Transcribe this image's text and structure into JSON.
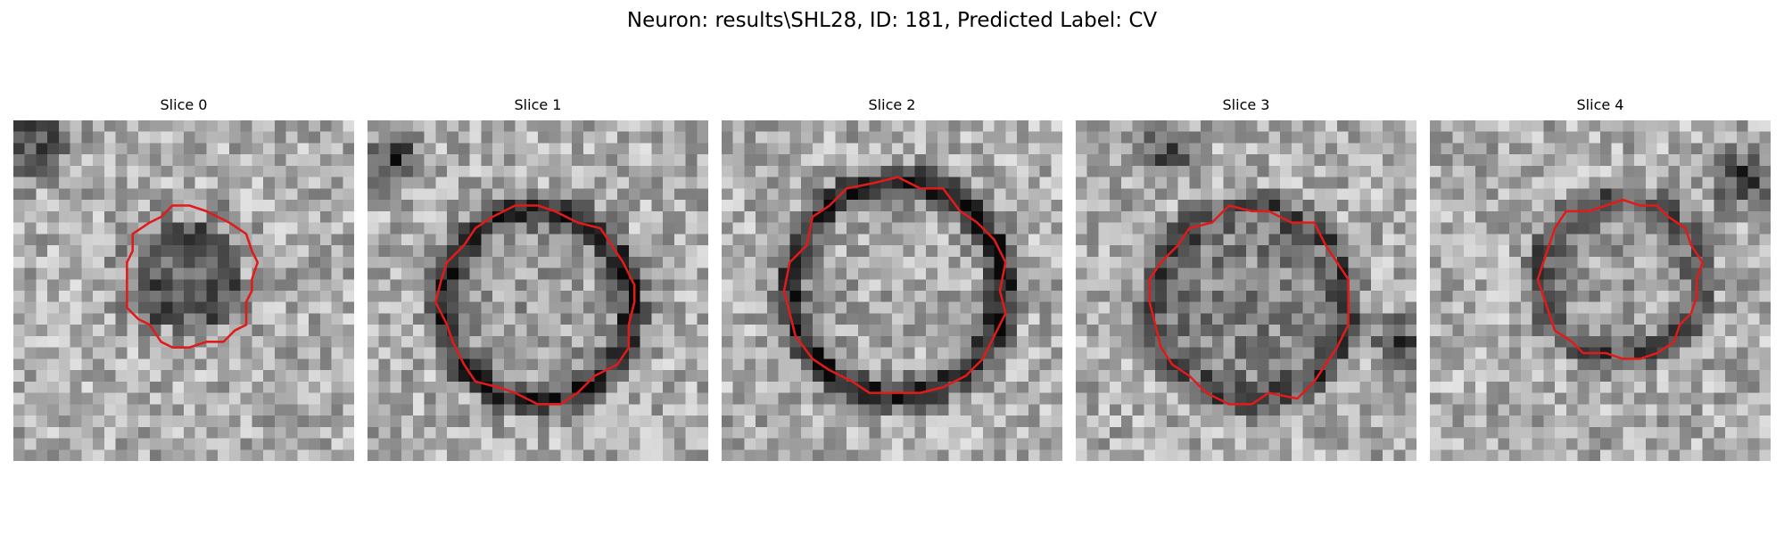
{
  "figure": {
    "title": "Neuron: results\\SHL28, ID: 181, Predicted Label: CV",
    "outline_color": "#e01b1b"
  },
  "panels": [
    {
      "title": "Slice 0"
    },
    {
      "title": "Slice 1"
    },
    {
      "title": "Slice 2"
    },
    {
      "title": "Slice 3"
    },
    {
      "title": "Slice 4"
    }
  ]
}
